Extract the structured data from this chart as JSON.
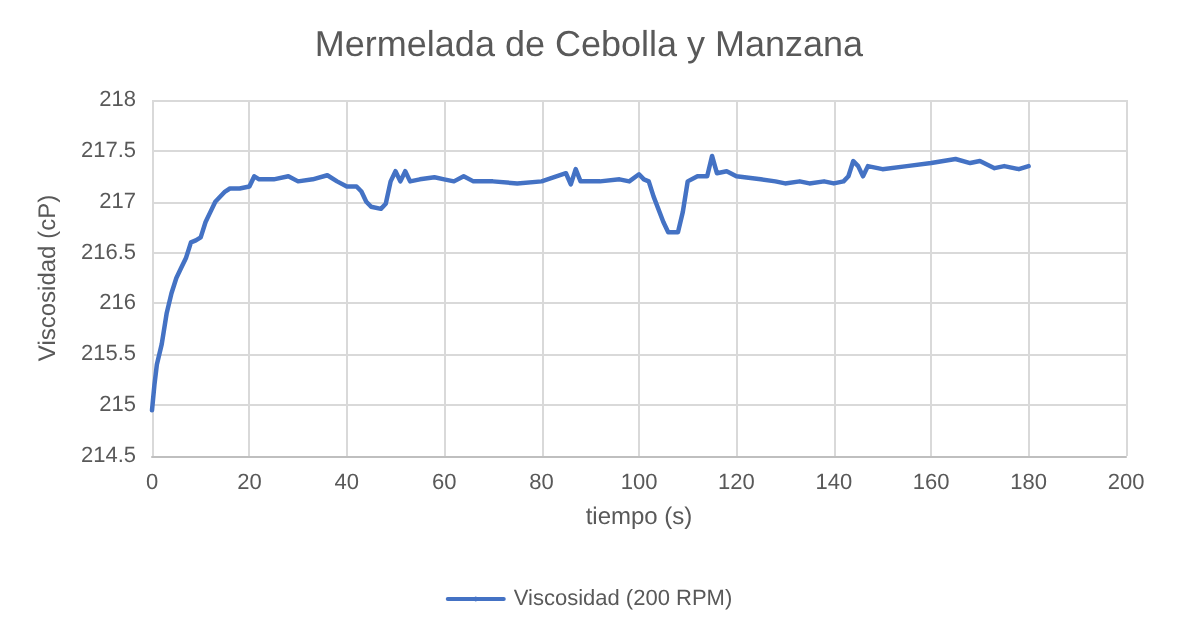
{
  "chart_data": {
    "type": "line",
    "title": "Mermelada de Cebolla y Manzana",
    "xlabel": "tiempo (s)",
    "ylabel": "Viscosidad (cP)",
    "series": [
      {
        "name": "Viscosidad (200 RPM)",
        "color": "#4472c4",
        "x": [
          0,
          0.5,
          1,
          2,
          3,
          4,
          5,
          6,
          7,
          8,
          9,
          10,
          11,
          12,
          13,
          15,
          16,
          18,
          20,
          21,
          22,
          25,
          28,
          30,
          33,
          36,
          38,
          40,
          42,
          43,
          44,
          45,
          47,
          48,
          49,
          50,
          51,
          52,
          53,
          55,
          58,
          60,
          62,
          64,
          66,
          70,
          75,
          80,
          85,
          86,
          87,
          88,
          92,
          96,
          98,
          100,
          101,
          102,
          103,
          105,
          106,
          108,
          109,
          110,
          112,
          114,
          115,
          116,
          118,
          120,
          125,
          128,
          130,
          133,
          135,
          138,
          140,
          142,
          143,
          144,
          145,
          146,
          147,
          150,
          155,
          160,
          165,
          168,
          170,
          173,
          175,
          178,
          180
        ],
        "values": [
          214.95,
          215.2,
          215.4,
          215.6,
          215.9,
          216.1,
          216.25,
          216.35,
          216.45,
          216.6,
          216.62,
          216.65,
          216.8,
          216.9,
          217.0,
          217.1,
          217.13,
          217.13,
          217.15,
          217.25,
          217.22,
          217.22,
          217.25,
          217.2,
          217.22,
          217.26,
          217.2,
          217.15,
          217.15,
          217.1,
          217.0,
          216.95,
          216.93,
          216.98,
          217.2,
          217.3,
          217.2,
          217.3,
          217.2,
          217.22,
          217.24,
          217.22,
          217.2,
          217.25,
          217.2,
          217.2,
          217.18,
          217.2,
          217.28,
          217.17,
          217.32,
          217.2,
          217.2,
          217.22,
          217.2,
          217.27,
          217.22,
          217.2,
          217.05,
          216.8,
          216.7,
          216.7,
          216.9,
          217.2,
          217.25,
          217.25,
          217.45,
          217.28,
          217.3,
          217.25,
          217.22,
          217.2,
          217.18,
          217.2,
          217.18,
          217.2,
          217.18,
          217.2,
          217.25,
          217.4,
          217.35,
          217.25,
          217.35,
          217.32,
          217.35,
          217.38,
          217.42,
          217.38,
          217.4,
          217.33,
          217.35,
          217.32,
          217.35
        ]
      }
    ],
    "xlim": [
      0,
      200
    ],
    "xticks": [
      0,
      20,
      40,
      60,
      80,
      100,
      120,
      140,
      160,
      180,
      200
    ],
    "ylim": [
      214.5,
      218
    ],
    "yticks": [
      214.5,
      215,
      215.5,
      216,
      216.5,
      217,
      217.5,
      218
    ],
    "grid": true,
    "legend": "bottom",
    "marker": "none",
    "line_style": "solid"
  }
}
